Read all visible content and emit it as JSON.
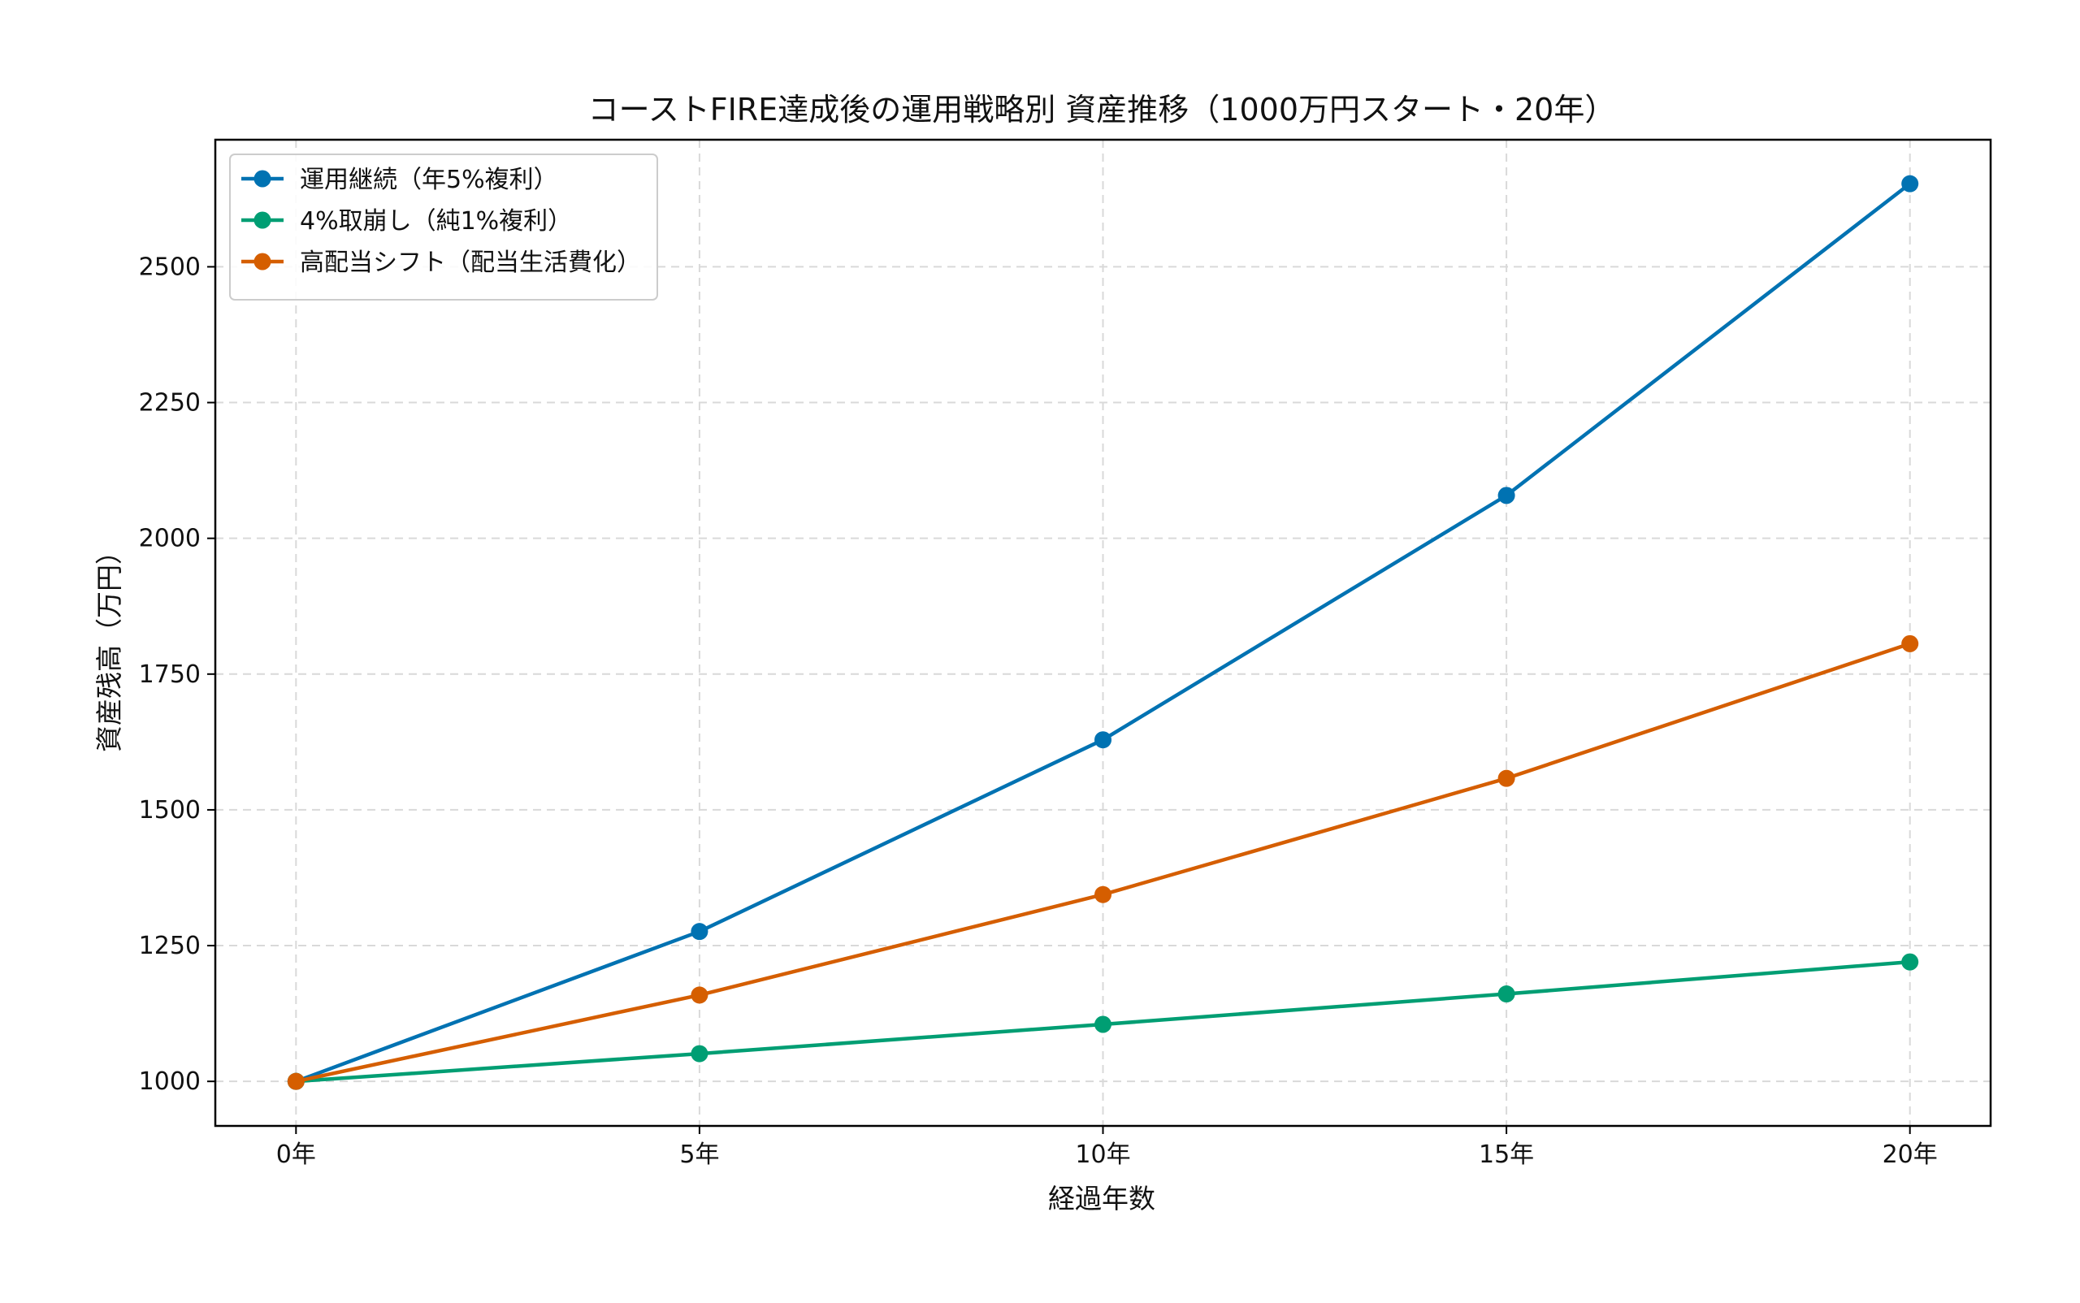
{
  "chart_data": {
    "type": "line",
    "title": "コーストFIRE達成後の運用戦略別 資産推移（1000万円スタート・20年）",
    "xlabel": "経過年数",
    "ylabel": "資産残高（万円）",
    "categories": [
      "0年",
      "5年",
      "10年",
      "15年",
      "20年"
    ],
    "x": [
      0,
      5,
      10,
      15,
      20
    ],
    "xlim": [
      -1,
      21
    ],
    "ylim": [
      918,
      2734
    ],
    "yticks": [
      1000,
      1250,
      1500,
      1750,
      2000,
      2250,
      2500
    ],
    "grid": true,
    "legend_position": "top-left",
    "series": [
      {
        "name": "運用継続（年5%複利）",
        "color": "#0072B2",
        "values": [
          1000,
          1276,
          1629,
          2079,
          2653
        ]
      },
      {
        "name": "4%取崩し（純1%複利）",
        "color": "#009E73",
        "values": [
          1000,
          1051,
          1105,
          1161,
          1220
        ]
      },
      {
        "name": "高配当シフト（配当生活費化）",
        "color": "#D55E00",
        "values": [
          1000,
          1159,
          1344,
          1558,
          1806
        ]
      }
    ]
  }
}
